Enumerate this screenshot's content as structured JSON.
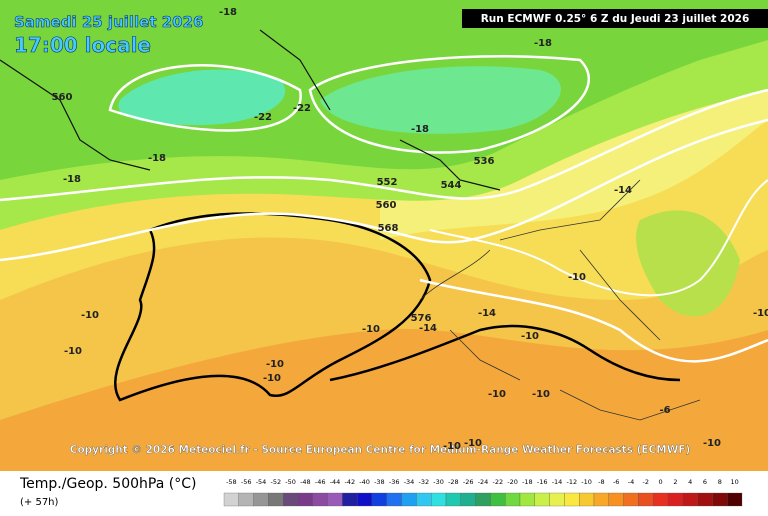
{
  "header": {
    "date": "Samedi 25 juillet 2026",
    "time": "17:00 locale",
    "run": "Run ECMWF 0.25° 6 Z du Jeudi 23 juillet 2026"
  },
  "copyright": "Copyright © 2026 Meteociel.fr - Source European Centre for Medium-Range Weather Forecasts (ECMWF)",
  "map_labels": [
    "-18",
    "-18",
    "-22",
    "-22",
    "-18",
    "-18",
    "-18",
    "560",
    "536",
    "544",
    "552",
    "560",
    "568",
    "-14",
    "-10",
    "576",
    "-14",
    "-14",
    "-10",
    "-10",
    "-10",
    "-10",
    "-10",
    "-10",
    "-10",
    "-10",
    "-10",
    "-10",
    "-10",
    "-6",
    "-10"
  ],
  "footer": {
    "title": "Temp./Geop. 500hPa (°C)",
    "lead": "(+ 57h)"
  },
  "scale": [
    "-58",
    "-56",
    "-54",
    "-52",
    "-50",
    "-48",
    "-46",
    "-44",
    "-42",
    "-40",
    "-38",
    "-36",
    "-34",
    "-32",
    "-30",
    "-28",
    "-26",
    "-24",
    "-22",
    "-20",
    "-18",
    "-16",
    "-14",
    "-12",
    "-10",
    "-8",
    "-6",
    "-4",
    "-2",
    "0",
    "2",
    "4",
    "6",
    "8",
    "10"
  ]
}
